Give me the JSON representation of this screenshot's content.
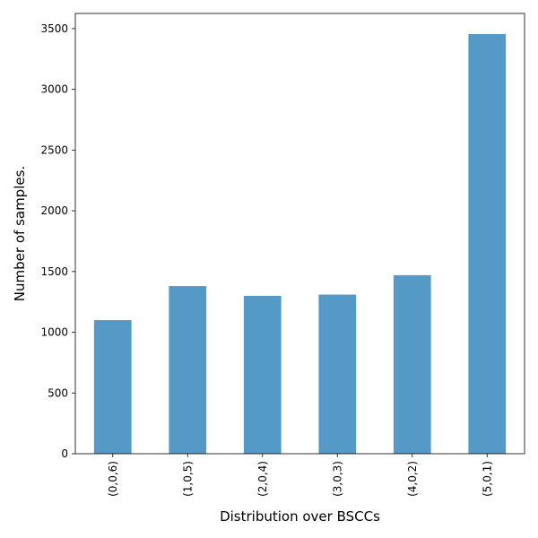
{
  "chart_data": {
    "type": "bar",
    "title": "",
    "xlabel": "Distribution over BSCCs",
    "ylabel": "Number of samples.",
    "categories": [
      "(0,0,6)",
      "(1,0,5)",
      "(2,0,4)",
      "(3,0,3)",
      "(4,0,2)",
      "(5,0,1)"
    ],
    "values": [
      1100,
      1380,
      1300,
      1310,
      1470,
      3455
    ],
    "ylim": [
      0,
      3625
    ],
    "yticks": [
      0,
      500,
      1000,
      1500,
      2000,
      2500,
      3000,
      3500
    ],
    "grid": false,
    "legend": "none",
    "bar_color": "#5599c7"
  }
}
